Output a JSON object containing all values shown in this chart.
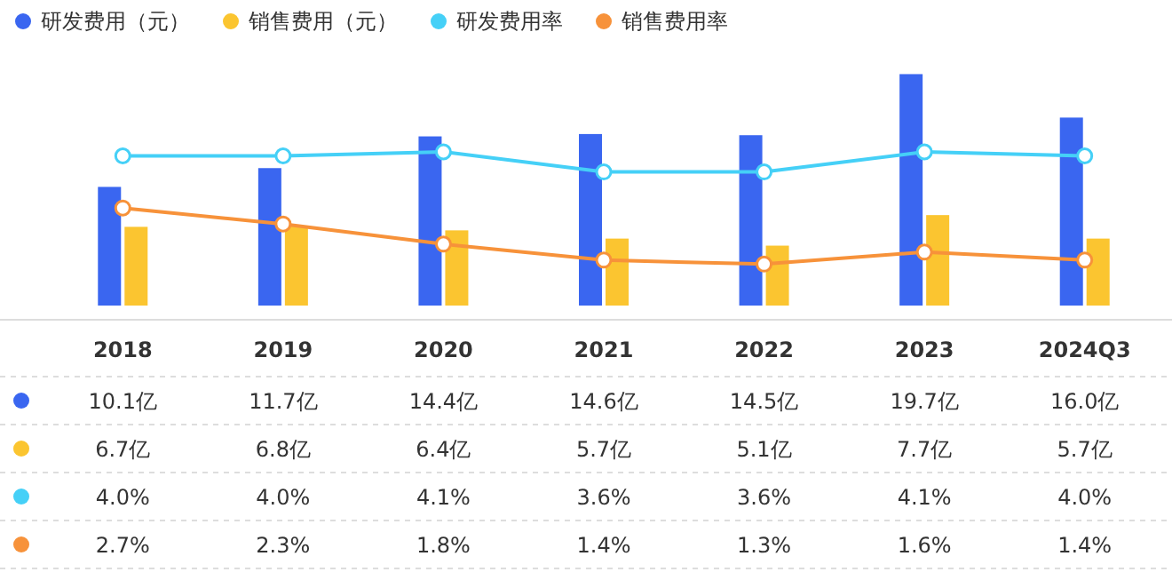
{
  "chart_data": {
    "type": "bar",
    "categories": [
      "2018",
      "2019",
      "2020",
      "2021",
      "2022",
      "2023",
      "2024Q3"
    ],
    "series": [
      {
        "name": "研发费用（元）",
        "color": "#3a66f0",
        "values": [
          10.1,
          11.7,
          14.4,
          14.6,
          14.5,
          19.7,
          16.0
        ],
        "value_labels": [
          "10.1亿",
          "11.7亿",
          "14.4亿",
          "14.6亿",
          "14.5亿",
          "19.7亿",
          "16.0亿"
        ]
      },
      {
        "name": "销售费用（元）",
        "color": "#fbc530",
        "values": [
          6.7,
          6.8,
          6.4,
          5.7,
          5.1,
          7.7,
          5.7
        ],
        "value_labels": [
          "6.7亿",
          "6.8亿",
          "6.4亿",
          "5.7亿",
          "5.1亿",
          "7.7亿",
          "5.7亿"
        ]
      },
      {
        "name": "研发费用率",
        "type": "line",
        "axis": "y2",
        "color": "#45d0f7",
        "values": [
          4.0,
          4.0,
          4.1,
          3.6,
          3.6,
          4.1,
          4.0
        ],
        "value_labels": [
          "4.0%",
          "4.0%",
          "4.1%",
          "3.6%",
          "3.6%",
          "4.1%",
          "4.0%"
        ]
      },
      {
        "name": "销售费用率",
        "type": "line",
        "axis": "y2",
        "color": "#f7923a",
        "values": [
          2.7,
          2.3,
          1.8,
          1.4,
          1.3,
          1.6,
          1.4
        ],
        "value_labels": [
          "2.7%",
          "2.3%",
          "1.8%",
          "1.4%",
          "1.3%",
          "1.6%",
          "1.4%"
        ]
      }
    ],
    "legend": "top left",
    "marker": "circle",
    "grid": false,
    "tick_labels": false
  }
}
